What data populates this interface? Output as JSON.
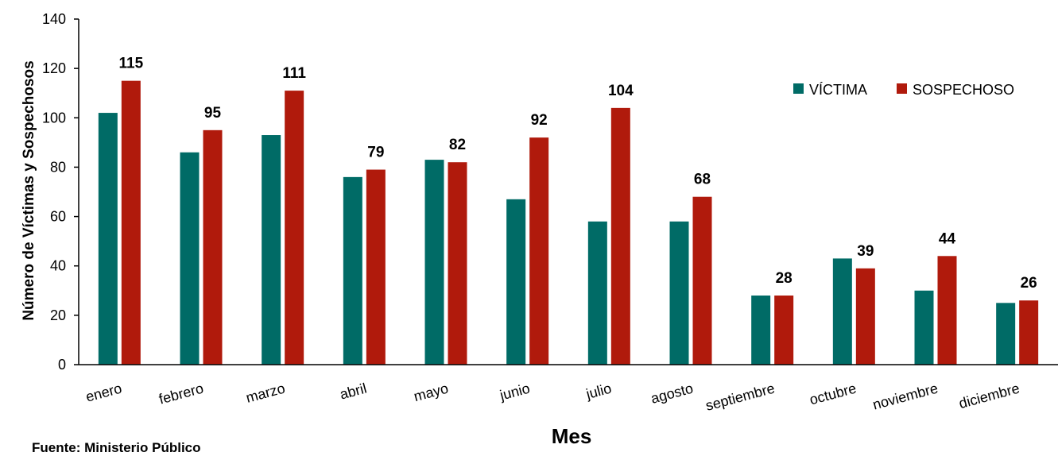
{
  "chart_data": {
    "type": "bar",
    "title": "",
    "xlabel": "Mes",
    "ylabel": "Número de Víctimas y Sospechosos",
    "ylim": [
      0,
      140
    ],
    "yticks": [
      0,
      20,
      40,
      60,
      80,
      100,
      120,
      140
    ],
    "categories": [
      "enero",
      "febrero",
      "marzo",
      "abril",
      "mayo",
      "junio",
      "julio",
      "agosto",
      "septiembre",
      "octubre",
      "noviembre",
      "diciembre"
    ],
    "series": [
      {
        "name": "VÍCTIMA",
        "color": "#006b66",
        "values": [
          102,
          86,
          93,
          76,
          83,
          67,
          58,
          58,
          28,
          43,
          30,
          25
        ]
      },
      {
        "name": "SOSPECHOSO",
        "color": "#b01a0c",
        "values": [
          115,
          95,
          111,
          79,
          82,
          92,
          104,
          68,
          28,
          39,
          44,
          26
        ]
      }
    ],
    "data_labels": {
      "series": "SOSPECHOSO",
      "labels": [
        "115",
        "95",
        "111",
        "79",
        "82",
        "92",
        "104",
        "68",
        "28",
        "39",
        "44",
        "26"
      ]
    },
    "legend": {
      "position": "top-right"
    },
    "grid": false
  },
  "footnote": "Fuente: Ministerio Público"
}
